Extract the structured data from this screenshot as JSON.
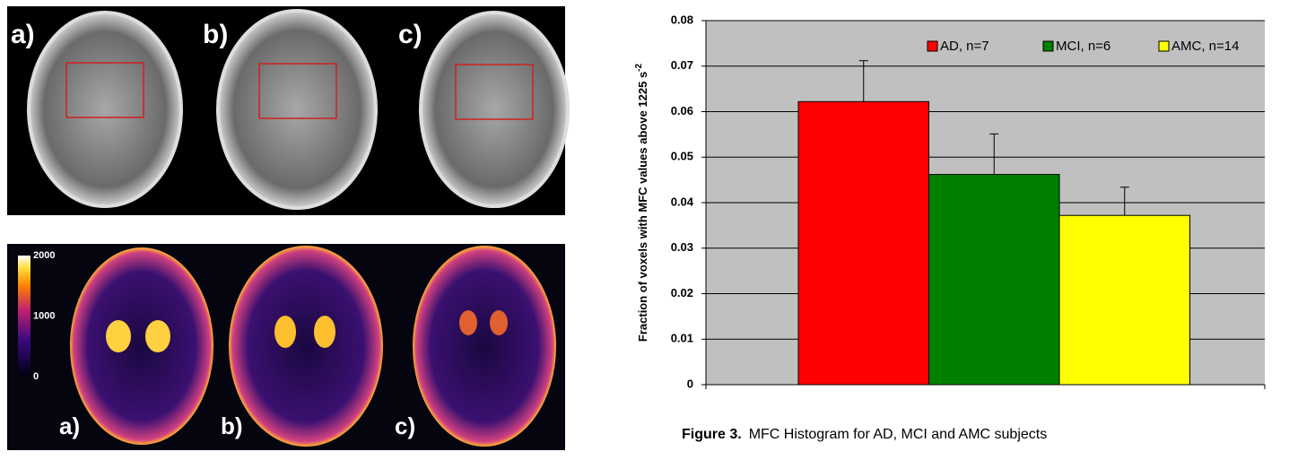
{
  "figure": {
    "top_labels": [
      "a)",
      "b)",
      "c)"
    ],
    "bottom_labels": [
      "a)",
      "b)",
      "c)"
    ],
    "colorbar_ticks": [
      2000,
      1000,
      0
    ],
    "colorbar_lim": [
      0,
      2000
    ]
  },
  "chart_data": {
    "type": "bar",
    "ylabel": "Fraction of voxels with MFC values above 1225 s",
    "ylabel_superscript": "-2",
    "caption_label": "Figure 3.",
    "caption": "MFC Histogram for AD, MCI and AMC subjects",
    "series": [
      {
        "name": "AD, n=7",
        "color": "#ff0000",
        "values": [
          0.0622
        ],
        "errors": [
          0.009
        ]
      },
      {
        "name": "MCI, n=6",
        "color": "#008000",
        "values": [
          0.0462
        ],
        "errors": [
          0.0089
        ]
      },
      {
        "name": "AMC, n=14",
        "color": "#ffff00",
        "values": [
          0.0372
        ],
        "errors": [
          0.0062
        ]
      }
    ],
    "ylim": [
      0,
      0.08
    ],
    "yticks": [
      0,
      0.01,
      0.02,
      0.03,
      0.04,
      0.05,
      0.06,
      0.07,
      0.08
    ],
    "grid": true,
    "legend": "top-right"
  }
}
